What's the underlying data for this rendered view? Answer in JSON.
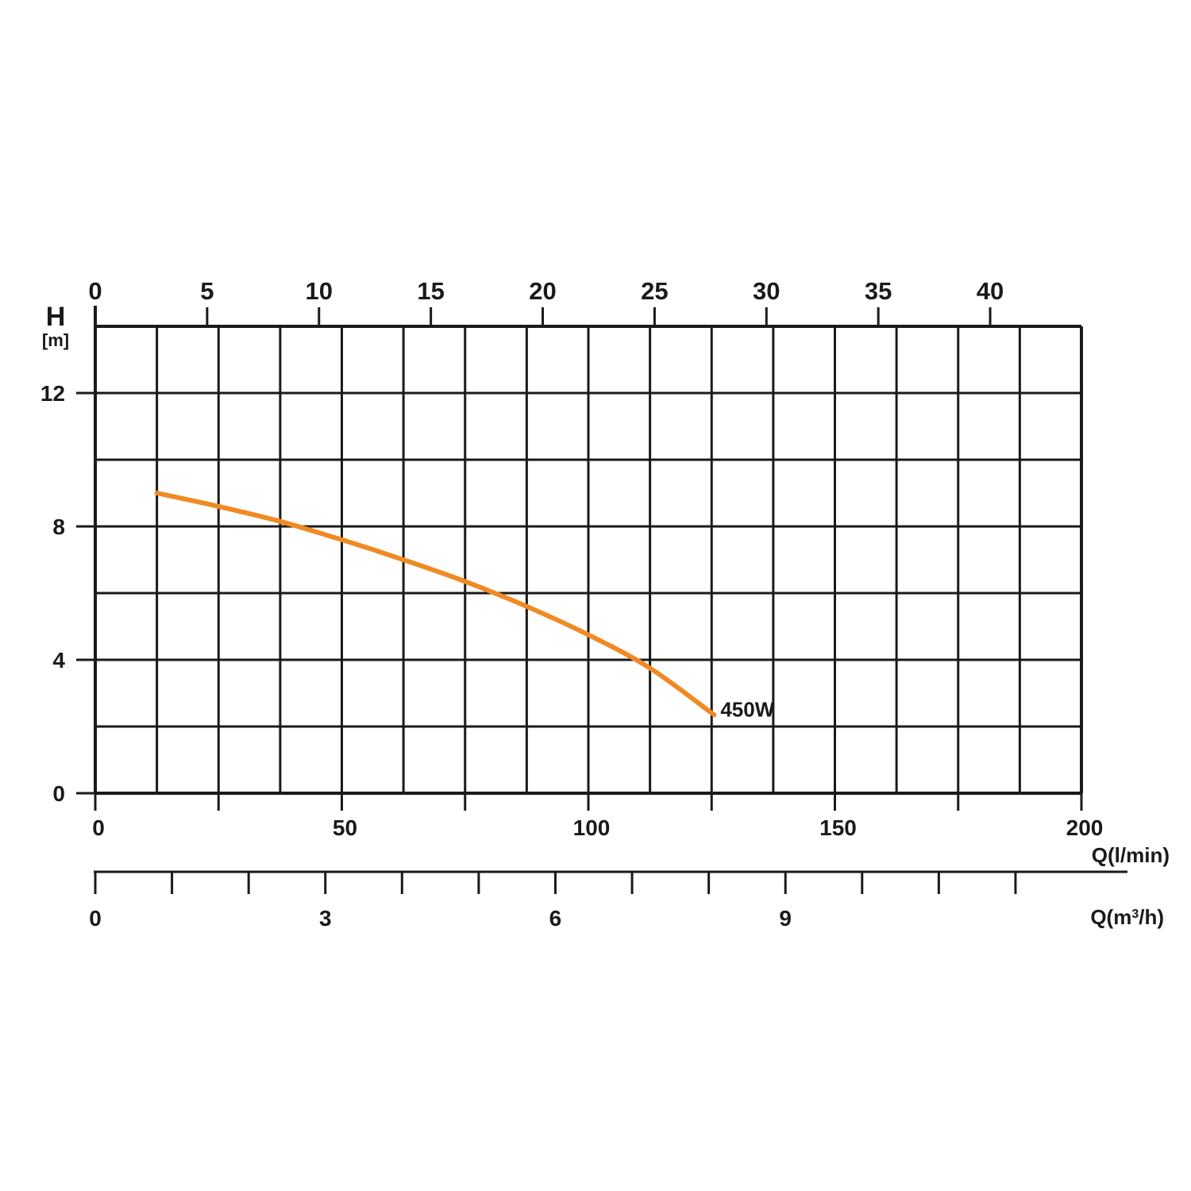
{
  "chart_data": {
    "type": "line",
    "series": [
      {
        "name": "450W",
        "color": "#f08a24",
        "points": [
          {
            "x": 12.5,
            "y": 9.0
          },
          {
            "x": 25,
            "y": 8.6
          },
          {
            "x": 37.5,
            "y": 8.15
          },
          {
            "x": 50,
            "y": 7.6
          },
          {
            "x": 62.5,
            "y": 7.0
          },
          {
            "x": 75,
            "y": 6.35
          },
          {
            "x": 87.5,
            "y": 5.6
          },
          {
            "x": 100,
            "y": 4.75
          },
          {
            "x": 112.5,
            "y": 3.75
          },
          {
            "x": 125.5,
            "y": 2.35
          }
        ]
      }
    ],
    "x_axis": {
      "label": "Q(l/min)",
      "range": [
        0,
        200
      ],
      "ticks": [
        "0",
        "50",
        "100",
        "150",
        "200"
      ],
      "minor_step": 12.5
    },
    "y_axis": {
      "label": "H",
      "unit": "[m]",
      "range": [
        0,
        14
      ],
      "ticks": [
        "0",
        "4",
        "8",
        "12"
      ],
      "grid_step": 2
    },
    "top_axis": {
      "ticks": [
        "0",
        "5",
        "10",
        "15",
        "20",
        "25",
        "30",
        "35",
        "40"
      ]
    },
    "secondary_x_axis": {
      "label_main": "Q(m",
      "label_sup": "3",
      "label_end": "/h)",
      "range": [
        0,
        12.86
      ],
      "ticks": [
        "0",
        "3",
        "6",
        "9"
      ],
      "minor_step": 1
    },
    "grid": true,
    "colors": {
      "curve": "#f08a24",
      "ink": "#1a1a1a"
    }
  }
}
